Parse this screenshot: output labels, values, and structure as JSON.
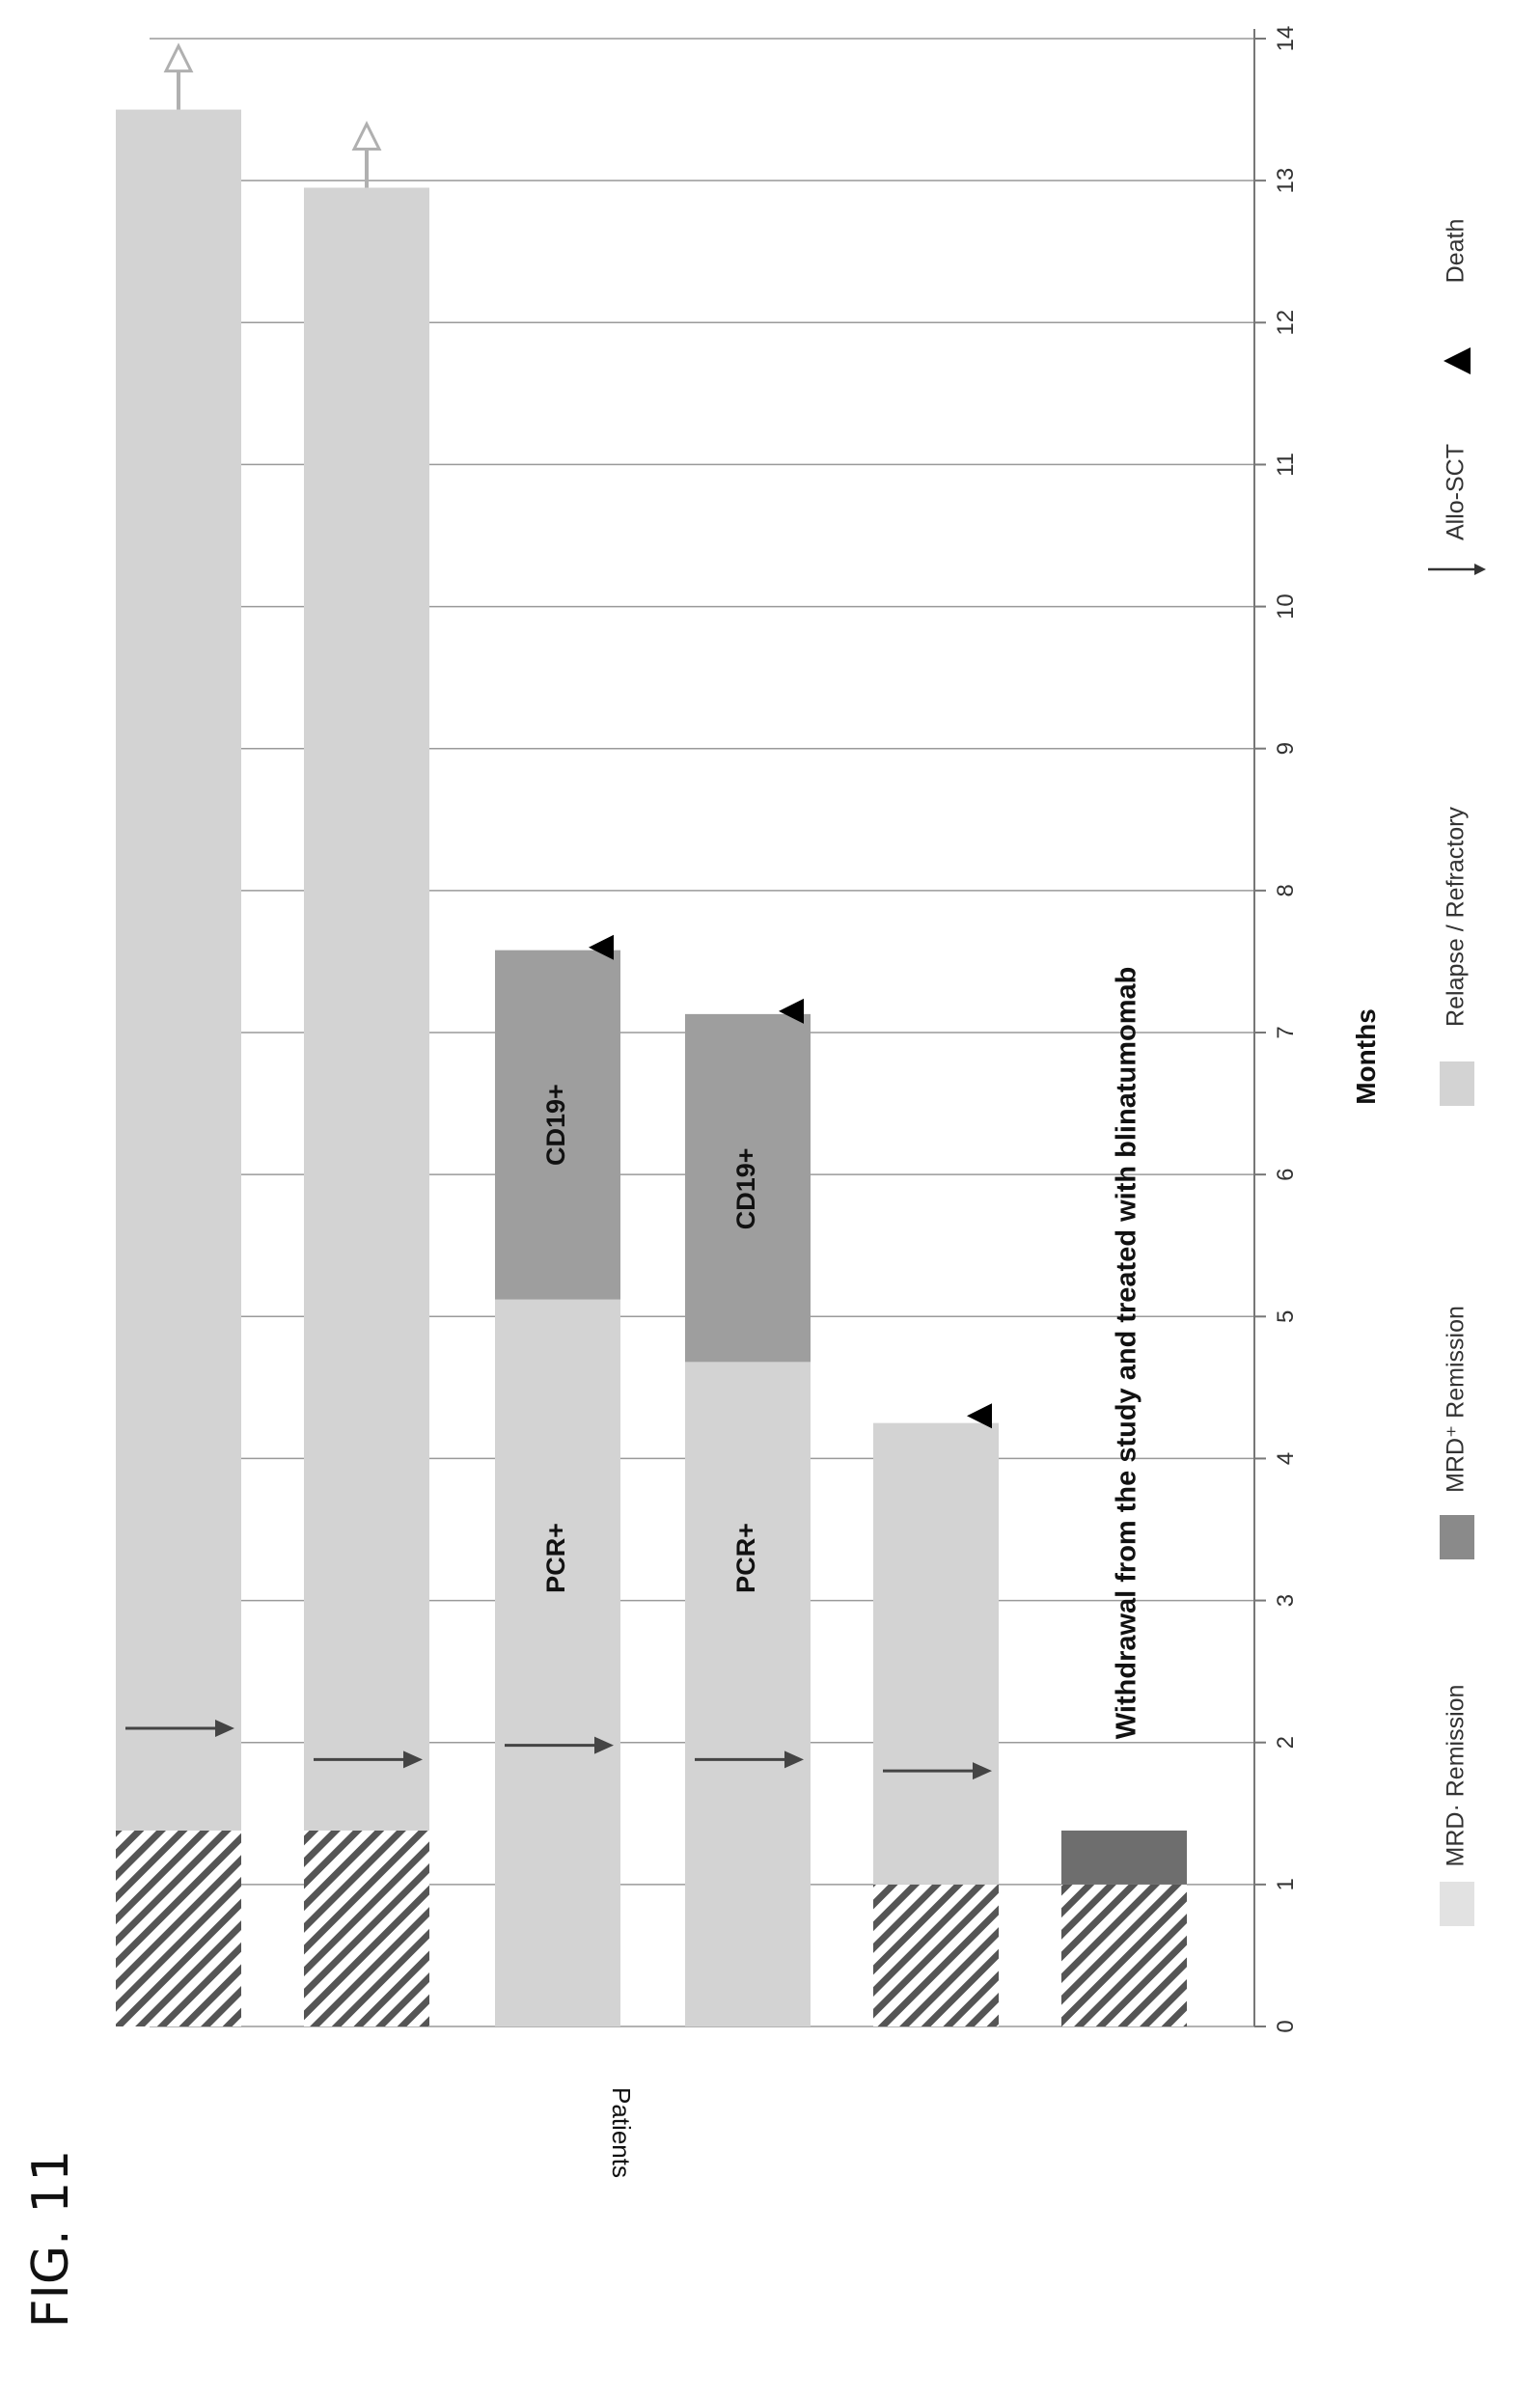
{
  "figure": {
    "label": "FIG. 11"
  },
  "chart_data": {
    "type": "swimmer",
    "orientation": "horizontal bars, figure rotated 90° clockwise",
    "xlabel": "Months",
    "ylabel": "Patients",
    "xlim": [
      0,
      14
    ],
    "x_ticks": [
      "0",
      "1",
      "2",
      "3",
      "4",
      "5",
      "6",
      "7",
      "8",
      "9",
      "10",
      "11",
      "12",
      "13",
      "14"
    ],
    "grid": true,
    "legend_placement": "bottom (along rotated page edge)",
    "legend": [
      {
        "key": "hatch",
        "label": "MRD· Remission"
      },
      {
        "key": "mrdpos",
        "label": "MRD⁺ Remission"
      },
      {
        "key": "relapse",
        "label": "Relapse / Refractory"
      },
      {
        "key": "sct",
        "label": "Allo-SCT"
      },
      {
        "key": "death",
        "label": "Death"
      }
    ],
    "series_colors": {
      "relapse": "#d3d3d3",
      "mrdpos": "#9e9e9e",
      "mrdpos_small": "#6e6e6e",
      "hatch": "#444444"
    },
    "patients": [
      {
        "segments": [
          {
            "type": "hatch",
            "start": 0,
            "end": 1.38
          },
          {
            "type": "relapse",
            "start": 1.38,
            "end": 13.5
          }
        ],
        "sct": 2.1,
        "death": null,
        "ongoing": true,
        "annotations": []
      },
      {
        "segments": [
          {
            "type": "hatch",
            "start": 0,
            "end": 1.38
          },
          {
            "type": "relapse",
            "start": 1.38,
            "end": 12.95
          }
        ],
        "sct": 1.88,
        "death": null,
        "ongoing": true,
        "annotations": []
      },
      {
        "segments": [
          {
            "type": "relapse",
            "start": 0,
            "end": 5.12
          },
          {
            "type": "mrdpos",
            "start": 5.12,
            "end": 7.58
          }
        ],
        "sct": 1.98,
        "death": 7.6,
        "ongoing": false,
        "annotations": [
          {
            "text": "PCR+",
            "at": 3.3
          },
          {
            "text": "CD19+",
            "at": 6.35
          }
        ]
      },
      {
        "segments": [
          {
            "type": "relapse",
            "start": 0,
            "end": 4.68
          },
          {
            "type": "mrdpos",
            "start": 4.68,
            "end": 7.13
          }
        ],
        "sct": 1.88,
        "death": 7.15,
        "ongoing": false,
        "annotations": [
          {
            "text": "PCR+",
            "at": 3.3
          },
          {
            "text": "CD19+",
            "at": 5.9
          }
        ]
      },
      {
        "segments": [
          {
            "type": "hatch",
            "start": 0,
            "end": 1.0
          },
          {
            "type": "relapse",
            "start": 1.0,
            "end": 4.25
          }
        ],
        "sct": 1.8,
        "death": 4.3,
        "ongoing": false,
        "annotations": []
      },
      {
        "segments": [
          {
            "type": "hatch",
            "start": 0,
            "end": 1.0
          },
          {
            "type": "mrdpos_small",
            "start": 1.0,
            "end": 1.38
          }
        ],
        "sct": null,
        "death": null,
        "ongoing": false,
        "annotations": [
          {
            "text": "Withdrawal from the study and treated with blinatumomab",
            "at": 1.55
          }
        ]
      }
    ]
  }
}
